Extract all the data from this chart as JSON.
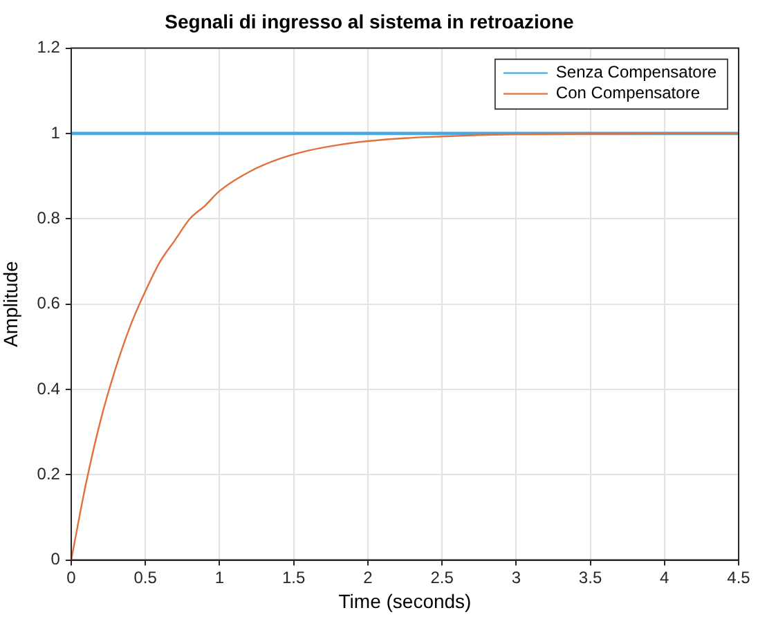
{
  "chart_data": {
    "type": "line",
    "title": "Segnali di ingresso al sistema in retroazione",
    "xlabel": "Time (seconds)",
    "ylabel": "Amplitude",
    "x": [
      0,
      0.1,
      0.2,
      0.3,
      0.4,
      0.5,
      0.6,
      0.7,
      0.8,
      0.9,
      1.0,
      1.2,
      1.4,
      1.6,
      1.8,
      2.0,
      2.25,
      2.5,
      2.75,
      3.0,
      3.5,
      4.0,
      4.5
    ],
    "series": [
      {
        "name": "Senza Compensatore",
        "color": "#4aa8dc",
        "values": [
          1,
          1,
          1,
          1,
          1,
          1,
          1,
          1,
          1,
          1,
          1,
          1,
          1,
          1,
          1,
          1,
          1,
          1,
          1,
          1,
          1,
          1,
          1
        ]
      },
      {
        "name": "Con Compensatore",
        "color": "#e2703c",
        "values": [
          0,
          0.18,
          0.33,
          0.45,
          0.55,
          0.63,
          0.7,
          0.75,
          0.8,
          0.83,
          0.865,
          0.91,
          0.94,
          0.96,
          0.973,
          0.982,
          0.989,
          0.993,
          0.996,
          0.998,
          0.999,
          1,
          1
        ]
      }
    ],
    "xlim": [
      0,
      4.5
    ],
    "xticks": [
      0,
      0.5,
      1,
      1.5,
      2,
      2.5,
      3,
      3.5,
      4,
      4.5
    ],
    "ylim": [
      0,
      1.2
    ],
    "yticks": [
      0,
      0.2,
      0.4,
      0.6,
      0.8,
      1,
      1.2
    ],
    "grid": true,
    "legend": "top right",
    "marker": "none",
    "line_style": "solid"
  }
}
